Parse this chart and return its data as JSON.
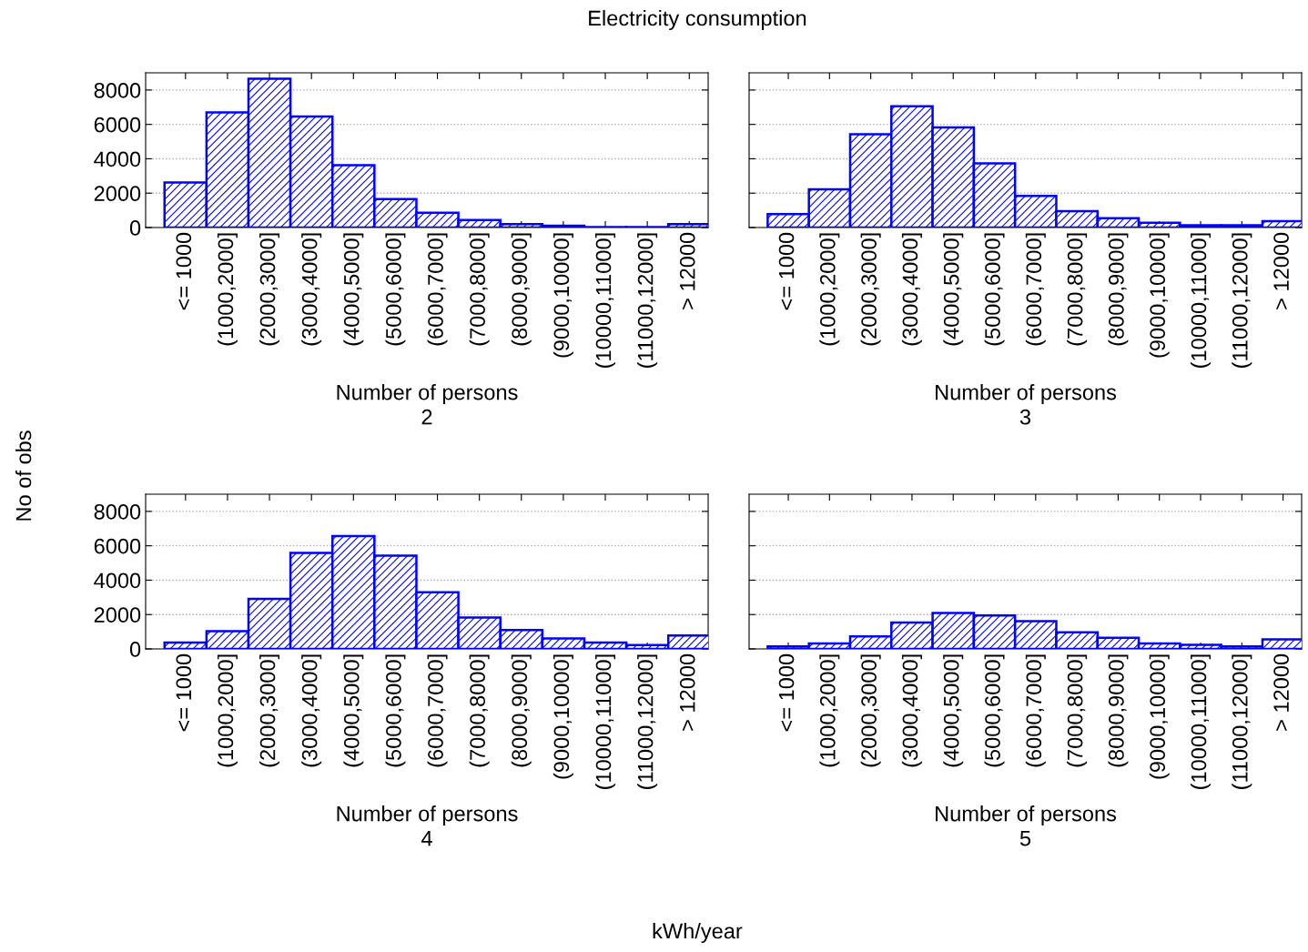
{
  "chart_data": [
    {
      "type": "bar",
      "title": "Electricity consumption",
      "annotations": [
        "No of obs",
        "kWh/year"
      ],
      "xlabel": "Number of persons\n2",
      "color": "#0000ff",
      "grid": "y",
      "categories": [
        "<= 1000",
        "(1000,2000]",
        "(2000,3000]",
        "(3000,4000]",
        "(4000,5000]",
        "(5000,6000]",
        "(6000,7000]",
        "(7000,8000]",
        "(8000,9000]",
        "(9000,10000]",
        "(10000,11000]",
        "(11000,12000]",
        "> 12000"
      ],
      "values": [
        2620,
        6700,
        8660,
        6460,
        3620,
        1660,
        860,
        440,
        200,
        100,
        30,
        30,
        200
      ],
      "ylim": [
        0,
        9000
      ],
      "yticks": [
        0,
        2000,
        4000,
        6000,
        8000
      ]
    },
    {
      "type": "bar",
      "xlabel": "Number of persons\n3",
      "color": "#0000ff",
      "grid": "y",
      "tick_labels": "x",
      "categories": [
        "<= 1000",
        "(1000,2000]",
        "(2000,3000]",
        "(3000,4000]",
        "(4000,5000]",
        "(5000,6000]",
        "(6000,7000]",
        "(7000,8000]",
        "(8000,9000]",
        "(9000,10000]",
        "(10000,11000]",
        "(11000,12000]",
        "> 12000"
      ],
      "values": [
        780,
        2230,
        5420,
        7050,
        5830,
        3730,
        1840,
        950,
        540,
        280,
        130,
        130,
        370
      ],
      "ylim": [
        0,
        9000
      ],
      "yticks": [
        0,
        2000,
        4000,
        6000,
        8000
      ]
    },
    {
      "type": "bar",
      "xlabel": "Number of persons\n4",
      "color": "#0000ff",
      "grid": "y",
      "categories": [
        "<= 1000",
        "(1000,2000]",
        "(2000,3000]",
        "(3000,4000]",
        "(4000,5000]",
        "(5000,6000]",
        "(6000,7000]",
        "(7000,8000]",
        "(8000,9000]",
        "(9000,10000]",
        "(10000,11000]",
        "(11000,12000]",
        "> 12000"
      ],
      "values": [
        370,
        1030,
        2910,
        5580,
        6560,
        5430,
        3300,
        1830,
        1100,
        610,
        370,
        220,
        780
      ],
      "ylim": [
        0,
        9000
      ],
      "yticks": [
        0,
        2000,
        4000,
        6000,
        8000
      ]
    },
    {
      "type": "bar",
      "xlabel": "Number of persons\n5",
      "color": "#0000ff",
      "grid": "y",
      "tick_labels": "x",
      "categories": [
        "<= 1000",
        "(1000,2000]",
        "(2000,3000]",
        "(3000,4000]",
        "(4000,5000]",
        "(5000,6000]",
        "(6000,7000]",
        "(7000,8000]",
        "(8000,9000]",
        "(9000,10000]",
        "(10000,11000]",
        "(11000,12000]",
        "> 12000"
      ],
      "values": [
        150,
        320,
        730,
        1530,
        2090,
        1940,
        1620,
        970,
        650,
        320,
        240,
        150,
        560
      ],
      "ylim": [
        0,
        9000
      ],
      "yticks": [
        0,
        2000,
        4000,
        6000,
        8000
      ]
    }
  ]
}
